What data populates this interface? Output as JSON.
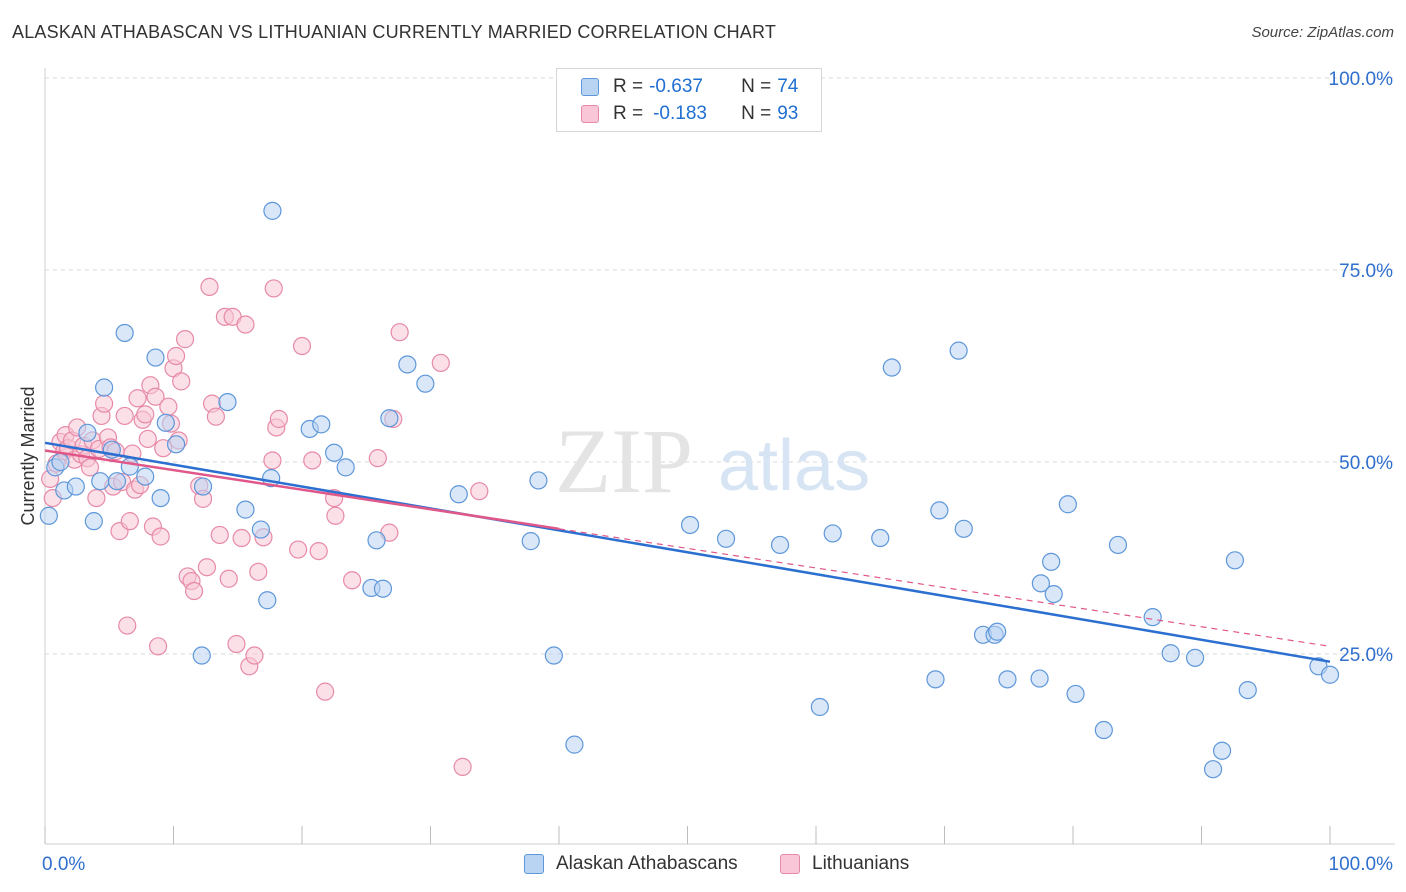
{
  "title": "ALASKAN ATHABASCAN VS LITHUANIAN CURRENTLY MARRIED CORRELATION CHART",
  "source": "Source: ZipAtlas.com",
  "watermark": {
    "zip": "ZIP",
    "atlas": "atlas"
  },
  "legend": {
    "r_label": "R =",
    "n_label": "N =",
    "rows": [
      {
        "r": "-0.637",
        "n": "74"
      },
      {
        "r": "-0.183",
        "n": "93"
      }
    ]
  },
  "bottom_legend": [
    "Alaskan Athabascans",
    "Lithuanians"
  ],
  "colors": {
    "blue_fill": "#b9d3f3",
    "blue_stroke": "#5e97da",
    "blue_line": "#2b6fd0",
    "pink_fill": "#f8c6d6",
    "pink_stroke": "#e78aa8",
    "pink_line": "#e0588a",
    "axis_text": "#2f6fce",
    "grid": "#d8d8d8"
  },
  "chart_data": {
    "type": "scatter",
    "xlabel": "",
    "ylabel": "Currently Married",
    "xlim": [
      0,
      100
    ],
    "ylim": [
      0,
      100
    ],
    "x_tick_labels": [
      "0.0%",
      "100.0%"
    ],
    "y_tick_labels": [
      "25.0%",
      "50.0%",
      "75.0%",
      "100.0%"
    ],
    "y_ticks": [
      25,
      50,
      75,
      100
    ],
    "grid": true,
    "series": [
      {
        "name": "Alaskan Athabascans",
        "color": "#5e97da",
        "r": -0.637,
        "n": 74,
        "trend": {
          "x": [
            0,
            100
          ],
          "y": [
            52.5,
            24.0
          ],
          "style": "solid"
        },
        "points": [
          [
            0.3,
            43.0
          ],
          [
            0.8,
            49.3
          ],
          [
            1.2,
            50.0
          ],
          [
            1.5,
            46.3
          ],
          [
            2.4,
            46.8
          ],
          [
            3.3,
            53.8
          ],
          [
            3.8,
            42.3
          ],
          [
            4.3,
            47.5
          ],
          [
            4.6,
            59.7
          ],
          [
            5.2,
            51.6
          ],
          [
            5.6,
            47.5
          ],
          [
            6.2,
            66.8
          ],
          [
            6.6,
            49.4
          ],
          [
            7.8,
            48.1
          ],
          [
            8.6,
            63.6
          ],
          [
            9.0,
            45.3
          ],
          [
            9.4,
            55.1
          ],
          [
            10.2,
            52.3
          ],
          [
            12.2,
            24.8
          ],
          [
            12.3,
            46.8
          ],
          [
            14.2,
            57.8
          ],
          [
            15.6,
            43.8
          ],
          [
            16.8,
            41.2
          ],
          [
            17.3,
            32.0
          ],
          [
            17.6,
            47.9
          ],
          [
            17.7,
            82.7
          ],
          [
            20.6,
            54.3
          ],
          [
            21.5,
            54.9
          ],
          [
            22.5,
            51.2
          ],
          [
            23.4,
            49.3
          ],
          [
            25.4,
            33.6
          ],
          [
            25.8,
            39.8
          ],
          [
            26.3,
            33.5
          ],
          [
            26.8,
            55.7
          ],
          [
            28.2,
            62.7
          ],
          [
            29.6,
            60.2
          ],
          [
            32.2,
            45.8
          ],
          [
            37.8,
            39.7
          ],
          [
            38.4,
            47.6
          ],
          [
            39.6,
            24.8
          ],
          [
            41.2,
            13.2
          ],
          [
            50.2,
            41.8
          ],
          [
            53.0,
            40.0
          ],
          [
            57.2,
            39.2
          ],
          [
            60.3,
            18.1
          ],
          [
            61.3,
            40.7
          ],
          [
            65.0,
            40.1
          ],
          [
            65.9,
            62.3
          ],
          [
            69.3,
            21.7
          ],
          [
            69.6,
            43.7
          ],
          [
            71.1,
            64.5
          ],
          [
            71.5,
            41.3
          ],
          [
            73.0,
            27.5
          ],
          [
            73.9,
            27.5
          ],
          [
            74.1,
            27.9
          ],
          [
            74.9,
            21.7
          ],
          [
            77.4,
            21.8
          ],
          [
            77.5,
            34.2
          ],
          [
            78.3,
            37.0
          ],
          [
            78.5,
            32.8
          ],
          [
            79.6,
            44.5
          ],
          [
            80.2,
            19.8
          ],
          [
            82.4,
            15.1
          ],
          [
            83.5,
            39.2
          ],
          [
            86.2,
            29.8
          ],
          [
            87.6,
            25.1
          ],
          [
            89.5,
            24.5
          ],
          [
            90.9,
            10.0
          ],
          [
            91.6,
            12.4
          ],
          [
            92.6,
            37.2
          ],
          [
            93.6,
            20.3
          ],
          [
            99.1,
            23.4
          ],
          [
            100.0,
            22.3
          ]
        ]
      },
      {
        "name": "Lithuanians",
        "color": "#e78aa8",
        "r": -0.183,
        "n": 93,
        "trend": {
          "x": [
            0,
            100
          ],
          "y": [
            51.5,
            26.0
          ],
          "solid_until": 40,
          "style": "solid-then-dashed"
        },
        "points": [
          [
            0.4,
            47.8
          ],
          [
            0.6,
            45.3
          ],
          [
            0.9,
            49.8
          ],
          [
            1.2,
            52.6
          ],
          [
            1.5,
            51.4
          ],
          [
            1.6,
            53.5
          ],
          [
            1.8,
            51.8
          ],
          [
            2.1,
            52.8
          ],
          [
            2.3,
            50.3
          ],
          [
            2.5,
            54.5
          ],
          [
            2.8,
            51.0
          ],
          [
            3.0,
            52.1
          ],
          [
            3.3,
            50.5
          ],
          [
            3.5,
            49.3
          ],
          [
            3.7,
            52.8
          ],
          [
            4.0,
            45.3
          ],
          [
            4.2,
            51.7
          ],
          [
            4.4,
            56.0
          ],
          [
            4.6,
            57.6
          ],
          [
            4.9,
            53.2
          ],
          [
            5.1,
            51.9
          ],
          [
            5.3,
            46.8
          ],
          [
            5.5,
            51.4
          ],
          [
            5.8,
            41.0
          ],
          [
            6.0,
            47.4
          ],
          [
            6.2,
            56.0
          ],
          [
            6.4,
            28.7
          ],
          [
            6.6,
            42.3
          ],
          [
            6.8,
            51.1
          ],
          [
            7.0,
            46.4
          ],
          [
            7.2,
            58.3
          ],
          [
            7.4,
            47.0
          ],
          [
            7.6,
            55.5
          ],
          [
            7.8,
            56.2
          ],
          [
            8.0,
            53.0
          ],
          [
            8.2,
            60.0
          ],
          [
            8.4,
            41.6
          ],
          [
            8.6,
            58.5
          ],
          [
            8.8,
            26.0
          ],
          [
            9.0,
            40.3
          ],
          [
            9.2,
            51.8
          ],
          [
            9.6,
            57.2
          ],
          [
            9.8,
            55.0
          ],
          [
            10.0,
            62.2
          ],
          [
            10.2,
            63.8
          ],
          [
            10.4,
            52.8
          ],
          [
            10.6,
            60.5
          ],
          [
            10.9,
            66.0
          ],
          [
            11.1,
            35.1
          ],
          [
            11.4,
            34.5
          ],
          [
            11.6,
            33.2
          ],
          [
            12.0,
            46.9
          ],
          [
            12.3,
            45.2
          ],
          [
            12.6,
            36.3
          ],
          [
            12.8,
            72.8
          ],
          [
            13.0,
            57.6
          ],
          [
            13.3,
            55.9
          ],
          [
            13.6,
            40.5
          ],
          [
            14.0,
            68.9
          ],
          [
            14.3,
            34.8
          ],
          [
            14.6,
            68.9
          ],
          [
            14.9,
            26.3
          ],
          [
            15.3,
            40.1
          ],
          [
            15.6,
            67.9
          ],
          [
            15.9,
            23.4
          ],
          [
            16.3,
            24.8
          ],
          [
            16.6,
            35.7
          ],
          [
            17.0,
            40.2
          ],
          [
            17.7,
            50.2
          ],
          [
            17.8,
            72.6
          ],
          [
            18.0,
            54.5
          ],
          [
            18.2,
            55.6
          ],
          [
            19.7,
            38.6
          ],
          [
            20.0,
            65.1
          ],
          [
            20.8,
            50.2
          ],
          [
            21.3,
            38.4
          ],
          [
            21.8,
            20.1
          ],
          [
            22.5,
            45.3
          ],
          [
            22.6,
            43.0
          ],
          [
            23.9,
            34.6
          ],
          [
            25.9,
            50.5
          ],
          [
            26.8,
            40.8
          ],
          [
            27.1,
            55.6
          ],
          [
            27.6,
            66.9
          ],
          [
            30.8,
            62.9
          ],
          [
            32.5,
            10.3
          ],
          [
            33.8,
            46.2
          ]
        ]
      }
    ]
  }
}
